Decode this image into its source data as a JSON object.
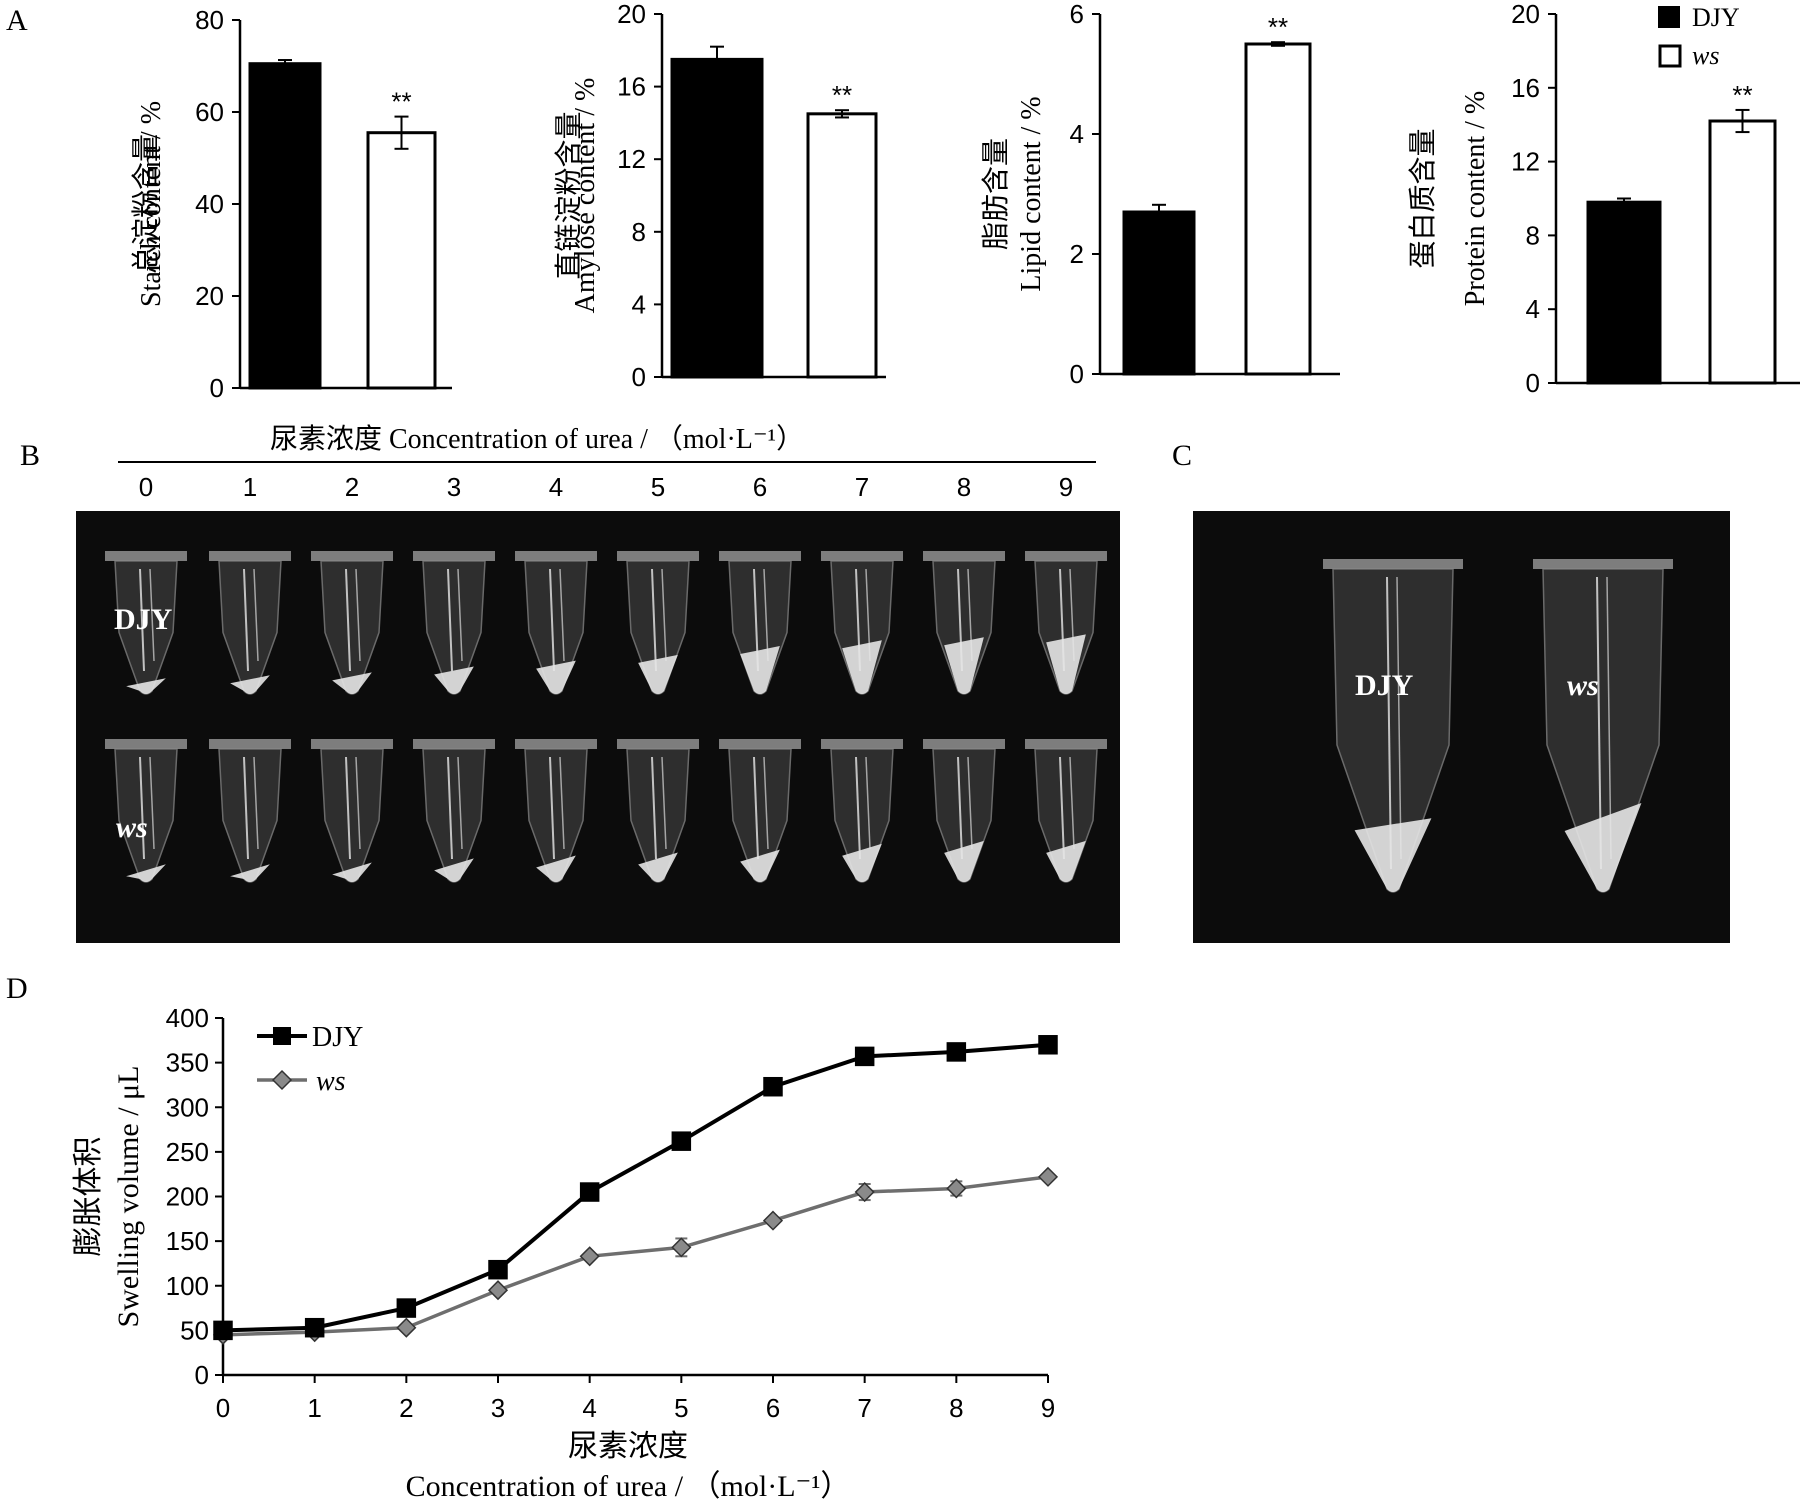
{
  "panel_labels": {
    "a": "A",
    "b": "B",
    "c": "C",
    "d": "D"
  },
  "colors": {
    "djy": "#000000",
    "ws": "#ffffff",
    "ws_line": "#6e6e6e",
    "ws_marker": "#8a8a8a",
    "photo_bg": "#0c0c0c"
  },
  "legend_top": {
    "djy": "DJY",
    "ws": "ws"
  },
  "sig_mark": "**",
  "chart_data": [
    {
      "type": "bar",
      "categories": [
        "DJY",
        "ws"
      ],
      "values": [
        70.5,
        55.5
      ],
      "errors": [
        0.8,
        3.5
      ],
      "significance": [
        "",
        "**"
      ],
      "ylabel_cn": "总淀粉含量",
      "ylabel_en": "Starch content / %",
      "ylim": [
        0,
        80
      ],
      "yticks": [
        0,
        20,
        40,
        60,
        80
      ]
    },
    {
      "type": "bar",
      "categories": [
        "DJY",
        "ws"
      ],
      "values": [
        17.5,
        14.5
      ],
      "errors": [
        0.7,
        0.2
      ],
      "significance": [
        "",
        "**"
      ],
      "ylabel_cn": "直链淀粉含量",
      "ylabel_en": "Amylose content / %",
      "ylim": [
        0,
        20
      ],
      "yticks": [
        0,
        4,
        8,
        12,
        16,
        20
      ]
    },
    {
      "type": "bar",
      "categories": [
        "DJY",
        "ws"
      ],
      "values": [
        2.7,
        5.5
      ],
      "errors": [
        0.12,
        0.03
      ],
      "significance": [
        "",
        "**"
      ],
      "ylabel_cn": "脂肪含量",
      "ylabel_en": "Lipid content / %",
      "ylim": [
        0,
        6
      ],
      "yticks": [
        0,
        2,
        4,
        6
      ]
    },
    {
      "type": "bar",
      "categories": [
        "DJY",
        "ws"
      ],
      "values": [
        9.8,
        14.2
      ],
      "errors": [
        0.2,
        0.6
      ],
      "significance": [
        "",
        "**"
      ],
      "ylabel_cn": "蛋白质含量",
      "ylabel_en": "Protein content / %",
      "ylim": [
        0,
        20
      ],
      "yticks": [
        0,
        4,
        8,
        12,
        16,
        20
      ]
    },
    {
      "type": "line",
      "x": [
        0,
        1,
        2,
        3,
        4,
        5,
        6,
        7,
        8,
        9
      ],
      "series": [
        {
          "name": "DJY",
          "values": [
            50,
            53,
            75,
            118,
            205,
            262,
            323,
            357,
            362,
            370
          ],
          "errors": [
            3,
            3,
            4,
            4,
            5,
            5,
            6,
            5,
            4,
            4
          ]
        },
        {
          "name": "ws",
          "values": [
            45,
            48,
            53,
            95,
            133,
            143,
            173,
            205,
            209,
            222
          ],
          "errors": [
            3,
            3,
            3,
            3,
            3,
            10,
            3,
            9,
            8,
            3
          ]
        }
      ],
      "ylabel_cn": "膨胀体积",
      "ylabel_en": "Swelling volume / μL",
      "xlabel_cn": "尿素浓度",
      "xlabel_en": "Concentration of urea / （mol·L⁻¹）",
      "ylim": [
        0,
        400
      ],
      "yticks": [
        0,
        50,
        100,
        150,
        200,
        250,
        300,
        350,
        400
      ],
      "xticks": [
        0,
        1,
        2,
        3,
        4,
        5,
        6,
        7,
        8,
        9
      ],
      "legend_position": "top-left"
    }
  ],
  "photo_b": {
    "header": "尿素浓度 Concentration of urea / （mol·L⁻¹）",
    "concentrations": [
      "0",
      "1",
      "2",
      "3",
      "4",
      "5",
      "6",
      "7",
      "8",
      "9"
    ],
    "row_labels": [
      "DJY",
      "ws"
    ]
  },
  "photo_c": {
    "labels": [
      "DJY",
      "ws"
    ]
  }
}
